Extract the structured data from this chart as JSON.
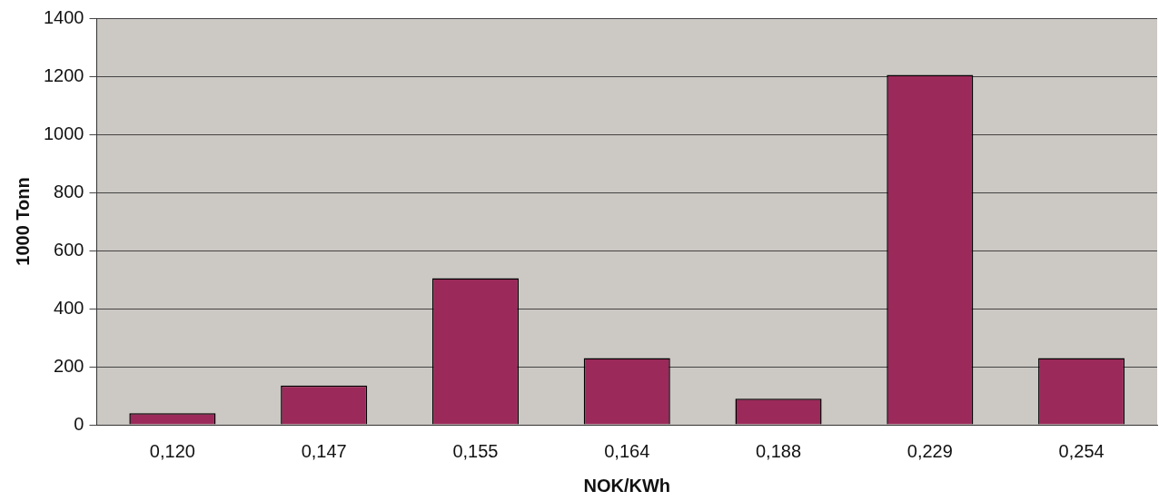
{
  "chart_data": {
    "type": "bar",
    "xlabel": "NOK/KWh",
    "ylabel": "1000 Tonn",
    "categories": [
      "0,120",
      "0,147",
      "0,155",
      "0,164",
      "0,188",
      "0,229",
      "0,254"
    ],
    "values": [
      40,
      135,
      505,
      230,
      90,
      1205,
      230
    ],
    "color": "#9b2a5a",
    "ylim": [
      0,
      1400
    ],
    "yticks": [
      0,
      200,
      400,
      600,
      800,
      1000,
      1200,
      1400
    ],
    "grid": "y",
    "legend": false
  }
}
